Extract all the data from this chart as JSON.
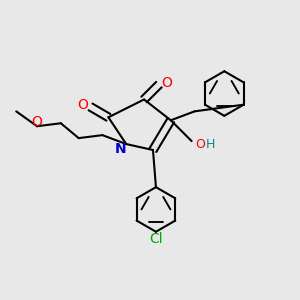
{
  "bg_color": "#e8e8e8",
  "bond_color": "#000000",
  "atom_colors": {
    "O": "#ff0000",
    "N": "#0000cc",
    "Cl": "#00aa00",
    "H": "#008888",
    "C": "#000000"
  },
  "line_width": 1.5,
  "font_size": 10
}
